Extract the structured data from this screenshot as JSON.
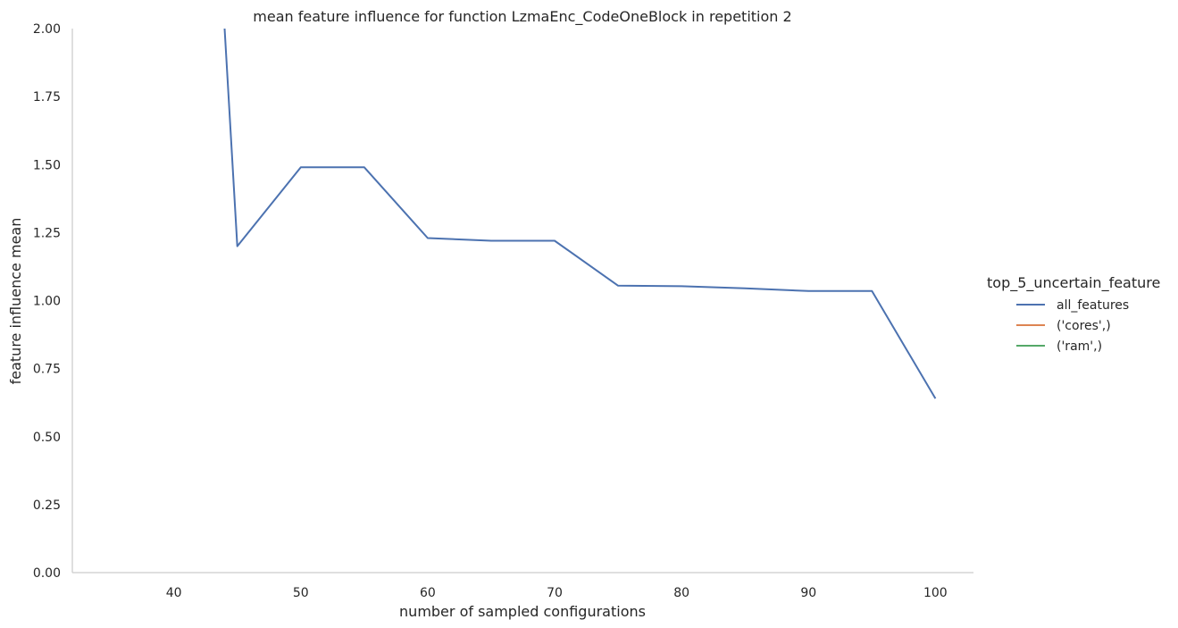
{
  "chart_data": {
    "type": "line",
    "title": "mean feature influence for function LzmaEnc_CodeOneBlock in repetition 2",
    "xlabel": "number of sampled configurations",
    "ylabel": "feature influence mean",
    "xlim": [
      32,
      103
    ],
    "ylim": [
      0,
      2.0
    ],
    "xticks": [
      40,
      50,
      60,
      70,
      80,
      90,
      100
    ],
    "yticks": [
      0.0,
      0.25,
      0.5,
      0.75,
      1.0,
      1.25,
      1.5,
      1.75,
      2.0
    ],
    "grid": false,
    "legend": {
      "title": "top_5_uncertain_feature",
      "placement": "right"
    },
    "series": [
      {
        "name": "all_features",
        "color": "#4c72b0",
        "x": [
          44,
          45,
          50,
          55,
          60,
          65,
          70,
          75,
          80,
          85,
          90,
          95,
          100
        ],
        "y": [
          2.0,
          1.2,
          1.49,
          1.49,
          1.23,
          1.22,
          1.22,
          1.055,
          1.053,
          1.045,
          1.035,
          1.035,
          0.64
        ]
      },
      {
        "name": "('cores',)",
        "color": "#dd8452",
        "x": [],
        "y": []
      },
      {
        "name": "('ram',)",
        "color": "#55a868",
        "x": [],
        "y": []
      }
    ]
  }
}
